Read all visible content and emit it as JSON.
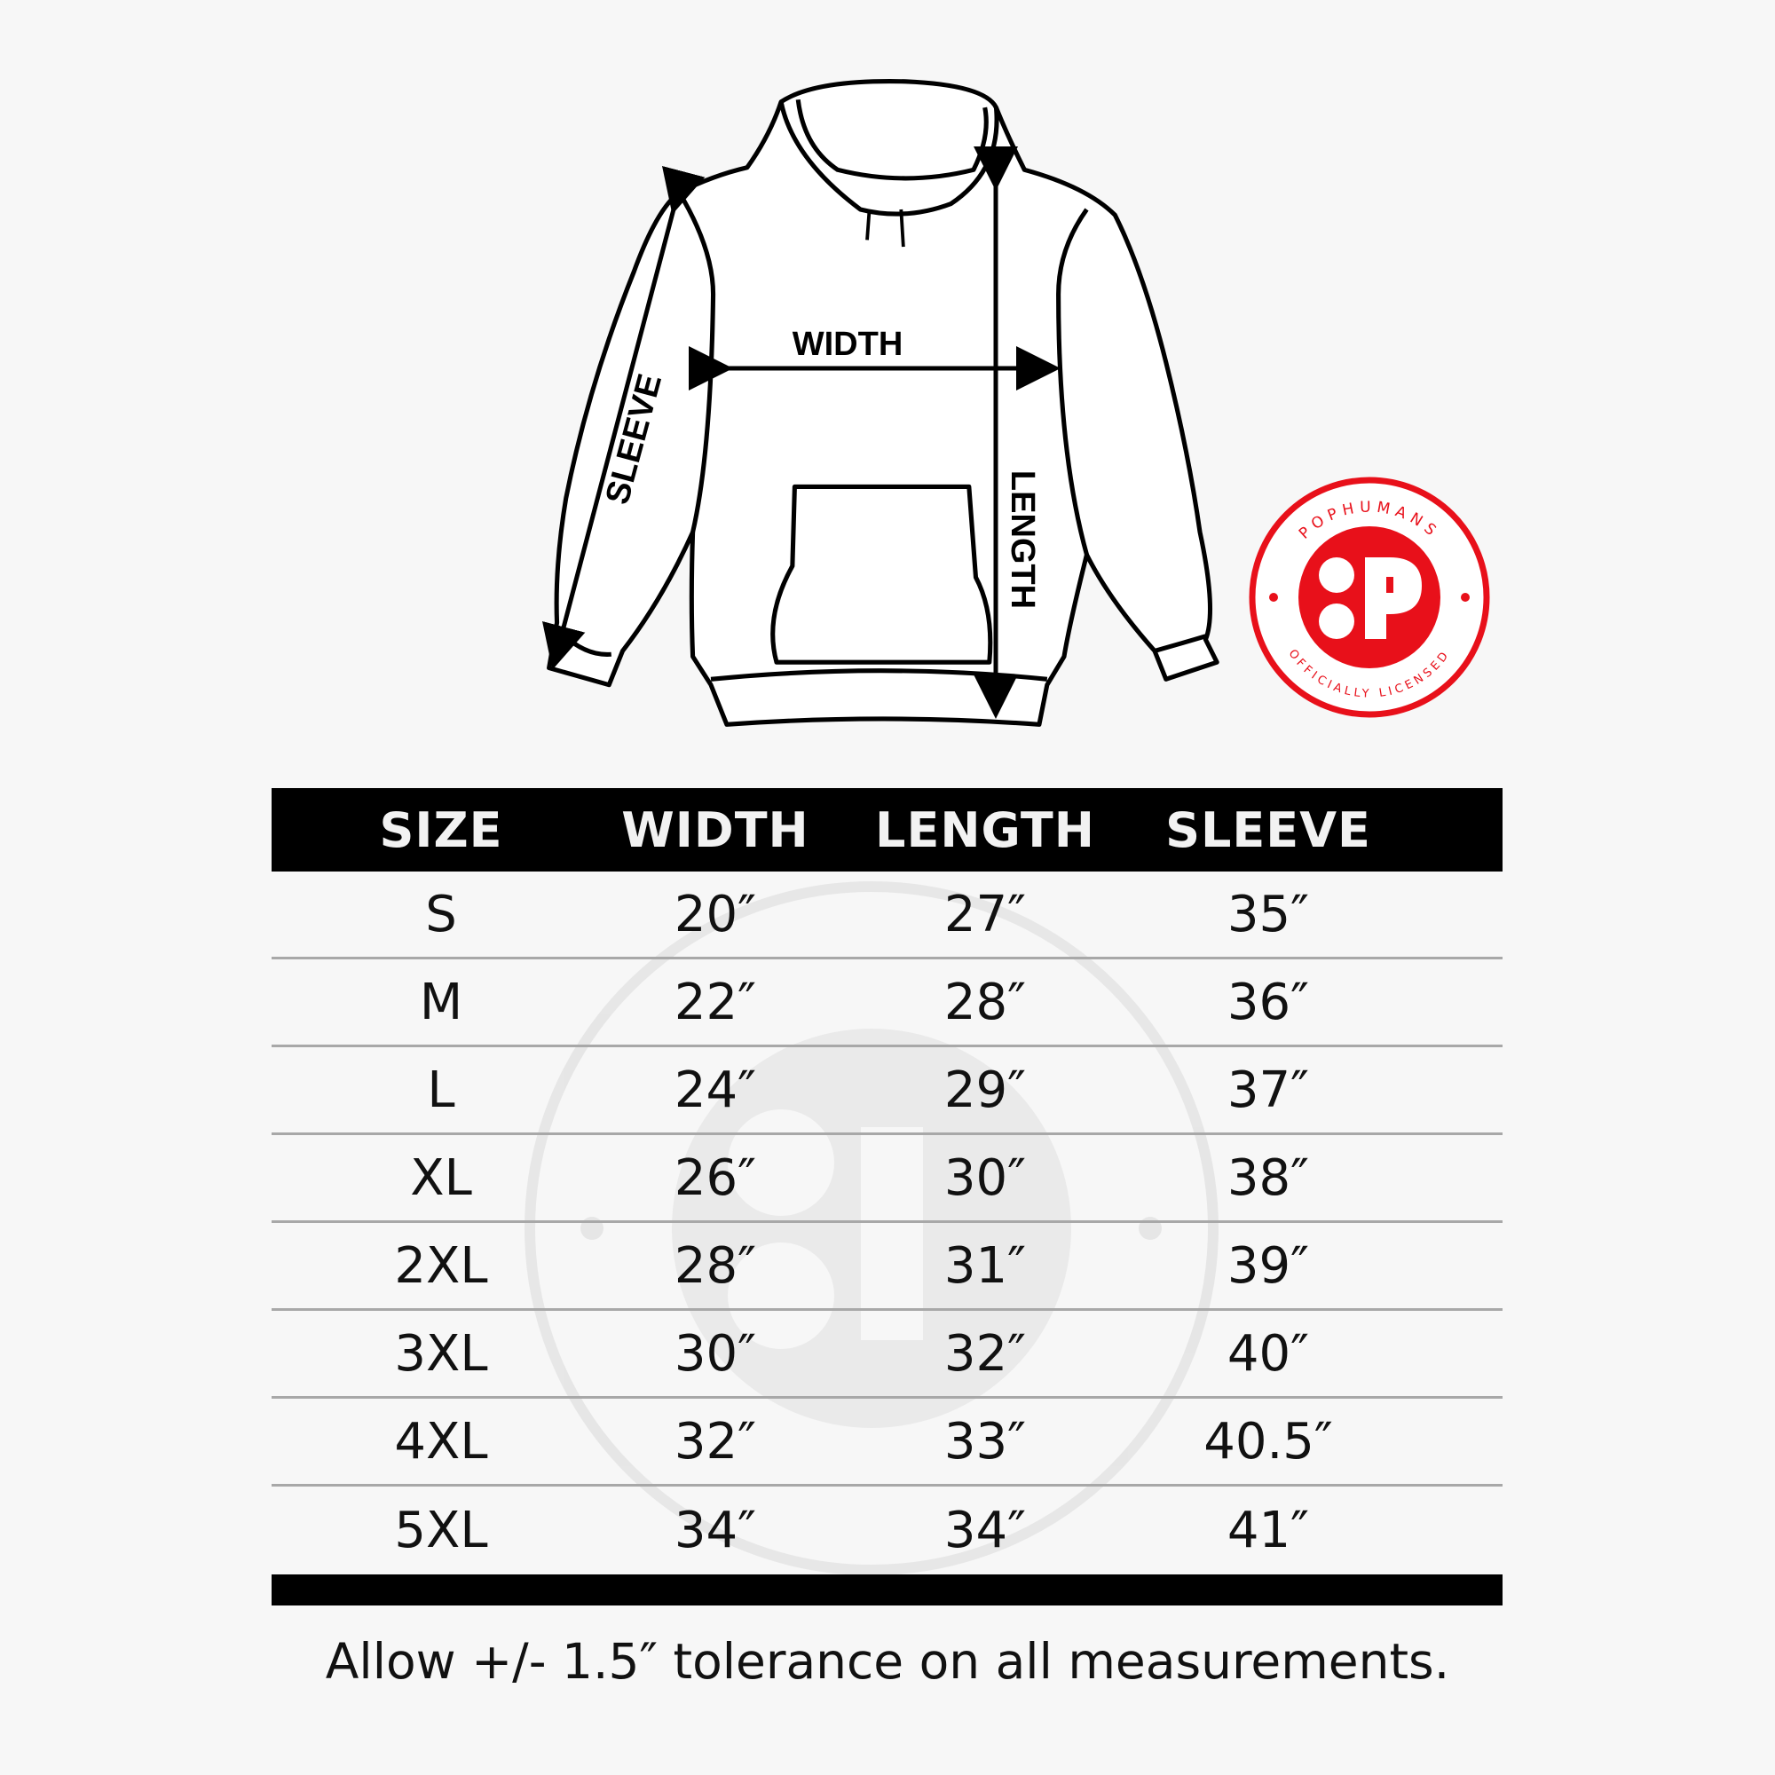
{
  "diagram_labels": {
    "width": "WIDTH",
    "length": "LENGTH",
    "sleeve": "SLEEVE"
  },
  "logo": {
    "top_text": "POPHUMANS",
    "bottom_text": "OFFICIALLY LICENSED",
    "color": "#e8101a"
  },
  "table": {
    "headers": [
      "SIZE",
      "WIDTH",
      "LENGTH",
      "SLEEVE"
    ],
    "rows": [
      [
        "S",
        "20″",
        "27″",
        "35″"
      ],
      [
        "M",
        "22″",
        "28″",
        "36″"
      ],
      [
        "L",
        "24″",
        "29″",
        "37″"
      ],
      [
        "XL",
        "26″",
        "30″",
        "38″"
      ],
      [
        "2XL",
        "28″",
        "31″",
        "39″"
      ],
      [
        "3XL",
        "30″",
        "32″",
        "40″"
      ],
      [
        "4XL",
        "32″",
        "33″",
        "40.5″"
      ],
      [
        "5XL",
        "34″",
        "34″",
        "41″"
      ]
    ]
  },
  "footnote": "Allow +/- 1.5″ tolerance on all measurements."
}
